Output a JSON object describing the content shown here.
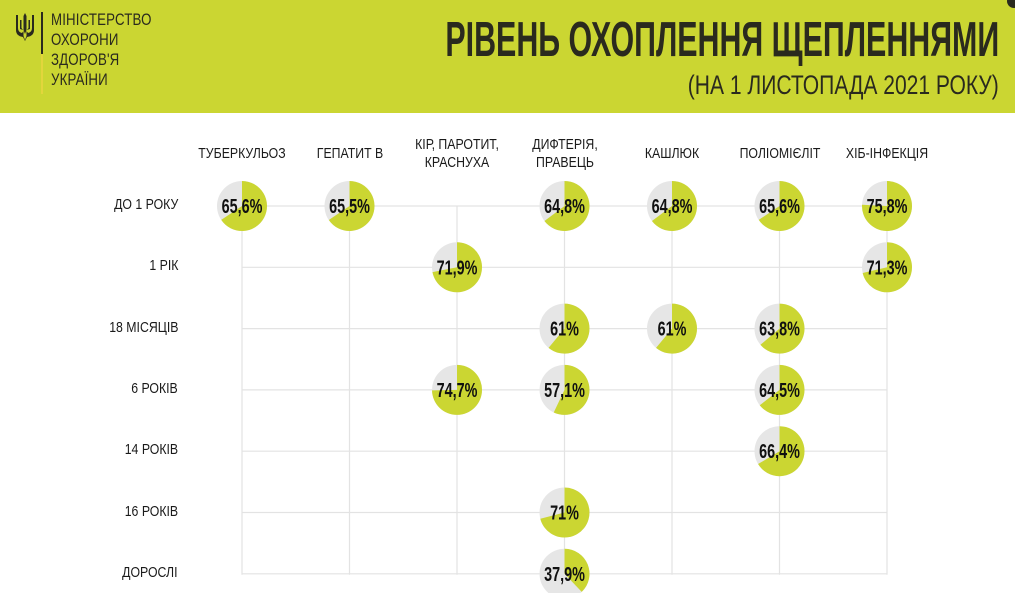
{
  "header": {
    "logo_lines": [
      "МІНІСТЕРСТВО",
      "ОХОРОНИ",
      "ЗДОРОВ'Я",
      "УКРАЇНИ"
    ],
    "logo_icon": "trident-icon",
    "title": "РІВЕНЬ ОХОПЛЕННЯ ЩЕПЛЕННЯМИ",
    "subtitle": "(НА 1 ЛИСТОПАДА 2021 РОКУ)"
  },
  "colors": {
    "accent": "#cbd632",
    "pie_fill": "#cbd632",
    "pie_rest": "#e6e6e6",
    "grid": "#e3e3e3",
    "text": "#1a1a1a"
  },
  "chart_data": {
    "type": "table",
    "title": "РІВЕНЬ ОХОПЛЕННЯ ЩЕПЛЕННЯМИ",
    "subtitle": "(НА 1 ЛИСТОПАДА 2021 РОКУ)",
    "columns": [
      {
        "lines": [
          "ТУБЕРКУЛЬОЗ"
        ]
      },
      {
        "lines": [
          "ГЕПАТИТ В"
        ]
      },
      {
        "lines": [
          "КІР, ПАРОТИТ,",
          "КРАСНУХА"
        ]
      },
      {
        "lines": [
          "ДИФТЕРІЯ,",
          "ПРАВЕЦЬ"
        ]
      },
      {
        "lines": [
          "КАШЛЮК"
        ]
      },
      {
        "lines": [
          "ПОЛІОМІЄЛІТ"
        ]
      },
      {
        "lines": [
          "ХІБ-ІНФЕКЦІЯ"
        ]
      }
    ],
    "rows": [
      "ДО 1 РОКУ",
      "1 РІК",
      "18 МІСЯЦІВ",
      "6 РОКІВ",
      "14 РОКІВ",
      "16 РОКІВ",
      "ДОРОСЛІ"
    ],
    "cells": [
      {
        "row": 0,
        "col": 0,
        "value": 65.6,
        "label": "65,6%"
      },
      {
        "row": 0,
        "col": 1,
        "value": 65.5,
        "label": "65,5%"
      },
      {
        "row": 0,
        "col": 3,
        "value": 64.8,
        "label": "64,8%"
      },
      {
        "row": 0,
        "col": 4,
        "value": 64.8,
        "label": "64,8%"
      },
      {
        "row": 0,
        "col": 5,
        "value": 65.6,
        "label": "65,6%"
      },
      {
        "row": 0,
        "col": 6,
        "value": 75.8,
        "label": "75,8%"
      },
      {
        "row": 1,
        "col": 2,
        "value": 71.9,
        "label": "71,9%"
      },
      {
        "row": 1,
        "col": 6,
        "value": 71.3,
        "label": "71,3%"
      },
      {
        "row": 2,
        "col": 3,
        "value": 61,
        "label": "61%"
      },
      {
        "row": 2,
        "col": 4,
        "value": 61,
        "label": "61%"
      },
      {
        "row": 2,
        "col": 5,
        "value": 63.8,
        "label": "63,8%"
      },
      {
        "row": 3,
        "col": 2,
        "value": 74.7,
        "label": "74,7%"
      },
      {
        "row": 3,
        "col": 3,
        "value": 57.1,
        "label": "57,1%"
      },
      {
        "row": 3,
        "col": 5,
        "value": 64.5,
        "label": "64,5%"
      },
      {
        "row": 4,
        "col": 5,
        "value": 66.4,
        "label": "66,4%"
      },
      {
        "row": 5,
        "col": 3,
        "value": 71,
        "label": "71%"
      },
      {
        "row": 6,
        "col": 3,
        "value": 37.9,
        "label": "37,9%"
      }
    ],
    "unit": "%",
    "max": 100
  }
}
